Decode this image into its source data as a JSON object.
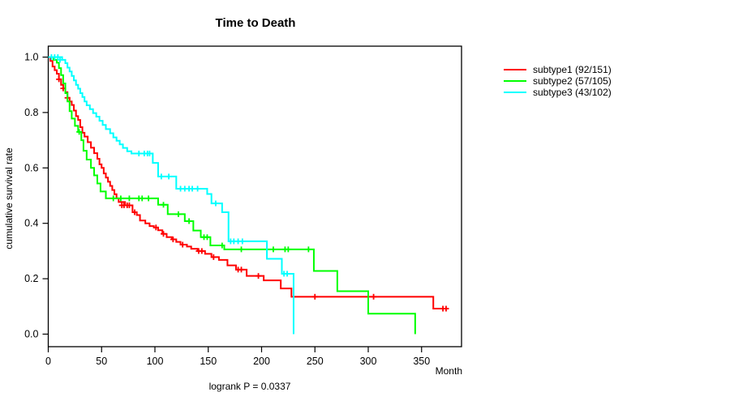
{
  "figure": {
    "title": "Time to Death",
    "x_axis_label": "Month",
    "y_axis_label": "cumulative survival rate",
    "footnote": "logrank P = 0.0337"
  },
  "legend": {
    "items": [
      {
        "label": "subtype1 (92/151)",
        "color": "#ff0000"
      },
      {
        "label": "subtype2 (57/105)",
        "color": "#00ff00"
      },
      {
        "label": "subtype3 (43/102)",
        "color": "#00ffff"
      }
    ]
  },
  "chart_data": {
    "type": "line",
    "variant": "kaplan-meier-step",
    "title": "Time to Death",
    "xlabel": "Month",
    "ylabel": "cumulative survival rate",
    "annotation": "logrank P = 0.0337",
    "xlim": [
      0,
      390
    ],
    "ylim": [
      0.0,
      1.0
    ],
    "x_ticks": [
      0,
      50,
      100,
      150,
      200,
      250,
      300,
      350
    ],
    "y_ticks": [
      0.0,
      0.2,
      0.4,
      0.6,
      0.8,
      1.0
    ],
    "grid": false,
    "legend_position": "right-outside",
    "series": [
      {
        "name": "subtype1 (92/151)",
        "color": "#ff0000",
        "end_month": 375,
        "points": [
          [
            0,
            1.0
          ],
          [
            2,
            0.986
          ],
          [
            4,
            0.966
          ],
          [
            6,
            0.953
          ],
          [
            8,
            0.94
          ],
          [
            10,
            0.92
          ],
          [
            12,
            0.9
          ],
          [
            14,
            0.887
          ],
          [
            16,
            0.873
          ],
          [
            18,
            0.853
          ],
          [
            20,
            0.84
          ],
          [
            22,
            0.827
          ],
          [
            24,
            0.807
          ],
          [
            26,
            0.787
          ],
          [
            28,
            0.773
          ],
          [
            30,
            0.747
          ],
          [
            32,
            0.727
          ],
          [
            34,
            0.713
          ],
          [
            37,
            0.693
          ],
          [
            40,
            0.673
          ],
          [
            43,
            0.653
          ],
          [
            46,
            0.633
          ],
          [
            48,
            0.613
          ],
          [
            50,
            0.6
          ],
          [
            52,
            0.58
          ],
          [
            54,
            0.565
          ],
          [
            56,
            0.55
          ],
          [
            58,
            0.535
          ],
          [
            60,
            0.52
          ],
          [
            62,
            0.505
          ],
          [
            64,
            0.49
          ],
          [
            66,
            0.477
          ],
          [
            72,
            0.465
          ],
          [
            79,
            0.44
          ],
          [
            83,
            0.43
          ],
          [
            86,
            0.41
          ],
          [
            91,
            0.4
          ],
          [
            95,
            0.39
          ],
          [
            99,
            0.385
          ],
          [
            103,
            0.375
          ],
          [
            107,
            0.362
          ],
          [
            111,
            0.35
          ],
          [
            116,
            0.342
          ],
          [
            120,
            0.333
          ],
          [
            124,
            0.323
          ],
          [
            130,
            0.316
          ],
          [
            134,
            0.308
          ],
          [
            140,
            0.3
          ],
          [
            147,
            0.29
          ],
          [
            153,
            0.278
          ],
          [
            160,
            0.268
          ],
          [
            168,
            0.248
          ],
          [
            176,
            0.233
          ],
          [
            186,
            0.21
          ],
          [
            202,
            0.194
          ],
          [
            218,
            0.165
          ],
          [
            228,
            0.135
          ],
          [
            361,
            0.092
          ]
        ],
        "censors": [
          [
            10,
            0.92
          ],
          [
            14,
            0.887
          ],
          [
            18,
            0.853
          ],
          [
            69,
            0.465
          ],
          [
            71,
            0.465
          ],
          [
            74,
            0.465
          ],
          [
            76,
            0.465
          ],
          [
            81,
            0.44
          ],
          [
            101,
            0.385
          ],
          [
            108,
            0.362
          ],
          [
            117,
            0.342
          ],
          [
            126,
            0.323
          ],
          [
            141,
            0.3
          ],
          [
            144,
            0.3
          ],
          [
            155,
            0.278
          ],
          [
            178,
            0.233
          ],
          [
            181,
            0.233
          ],
          [
            197,
            0.21
          ],
          [
            250,
            0.135
          ],
          [
            305,
            0.135
          ],
          [
            370,
            0.092
          ],
          [
            373,
            0.092
          ]
        ]
      },
      {
        "name": "subtype2 (57/105)",
        "color": "#00ff00",
        "end_month": 344,
        "points": [
          [
            0,
            1.0
          ],
          [
            5,
            0.99
          ],
          [
            8,
            0.98
          ],
          [
            10,
            0.96
          ],
          [
            12,
            0.935
          ],
          [
            14,
            0.905
          ],
          [
            16,
            0.87
          ],
          [
            18,
            0.84
          ],
          [
            20,
            0.805
          ],
          [
            22,
            0.778
          ],
          [
            25,
            0.752
          ],
          [
            28,
            0.73
          ],
          [
            31,
            0.7
          ],
          [
            33,
            0.662
          ],
          [
            36,
            0.63
          ],
          [
            40,
            0.6
          ],
          [
            43,
            0.573
          ],
          [
            46,
            0.544
          ],
          [
            49,
            0.515
          ],
          [
            54,
            0.49
          ],
          [
            103,
            0.467
          ],
          [
            112,
            0.433
          ],
          [
            128,
            0.408
          ],
          [
            136,
            0.374
          ],
          [
            143,
            0.35
          ],
          [
            152,
            0.32
          ],
          [
            165,
            0.306
          ],
          [
            249,
            0.228
          ],
          [
            271,
            0.155
          ],
          [
            300,
            0.074
          ],
          [
            344,
            0.0
          ]
        ],
        "censors": [
          [
            29,
            0.73
          ],
          [
            61,
            0.49
          ],
          [
            68,
            0.49
          ],
          [
            76,
            0.49
          ],
          [
            85,
            0.49
          ],
          [
            88,
            0.49
          ],
          [
            94,
            0.49
          ],
          [
            108,
            0.467
          ],
          [
            122,
            0.433
          ],
          [
            132,
            0.408
          ],
          [
            146,
            0.35
          ],
          [
            149,
            0.35
          ],
          [
            163,
            0.32
          ],
          [
            181,
            0.306
          ],
          [
            211,
            0.306
          ],
          [
            222,
            0.306
          ],
          [
            225,
            0.306
          ],
          [
            244,
            0.306
          ]
        ]
      },
      {
        "name": "subtype3 (43/102)",
        "color": "#00ffff",
        "end_month": 230,
        "points": [
          [
            0,
            1.0
          ],
          [
            13,
            0.99
          ],
          [
            16,
            0.978
          ],
          [
            18,
            0.962
          ],
          [
            20,
            0.948
          ],
          [
            22,
            0.932
          ],
          [
            24,
            0.916
          ],
          [
            26,
            0.9
          ],
          [
            28,
            0.886
          ],
          [
            30,
            0.87
          ],
          [
            32,
            0.856
          ],
          [
            34,
            0.84
          ],
          [
            36,
            0.826
          ],
          [
            39,
            0.812
          ],
          [
            42,
            0.798
          ],
          [
            45,
            0.785
          ],
          [
            48,
            0.77
          ],
          [
            51,
            0.755
          ],
          [
            54,
            0.74
          ],
          [
            58,
            0.725
          ],
          [
            61,
            0.71
          ],
          [
            64,
            0.698
          ],
          [
            67,
            0.685
          ],
          [
            70,
            0.672
          ],
          [
            74,
            0.66
          ],
          [
            78,
            0.652
          ],
          [
            98,
            0.618
          ],
          [
            103,
            0.569
          ],
          [
            120,
            0.525
          ],
          [
            149,
            0.506
          ],
          [
            153,
            0.472
          ],
          [
            163,
            0.44
          ],
          [
            169,
            0.335
          ],
          [
            205,
            0.272
          ],
          [
            219,
            0.218
          ],
          [
            230,
            0.0
          ]
        ],
        "censors": [
          [
            3,
            1.0
          ],
          [
            6,
            1.0
          ],
          [
            9,
            1.0
          ],
          [
            11,
            0.99
          ],
          [
            85,
            0.652
          ],
          [
            90,
            0.652
          ],
          [
            93,
            0.652
          ],
          [
            95,
            0.652
          ],
          [
            106,
            0.569
          ],
          [
            113,
            0.569
          ],
          [
            124,
            0.525
          ],
          [
            128,
            0.525
          ],
          [
            132,
            0.525
          ],
          [
            135,
            0.525
          ],
          [
            140,
            0.525
          ],
          [
            157,
            0.472
          ],
          [
            171,
            0.335
          ],
          [
            174,
            0.335
          ],
          [
            178,
            0.335
          ],
          [
            182,
            0.335
          ],
          [
            221,
            0.218
          ],
          [
            224,
            0.218
          ]
        ]
      }
    ]
  }
}
